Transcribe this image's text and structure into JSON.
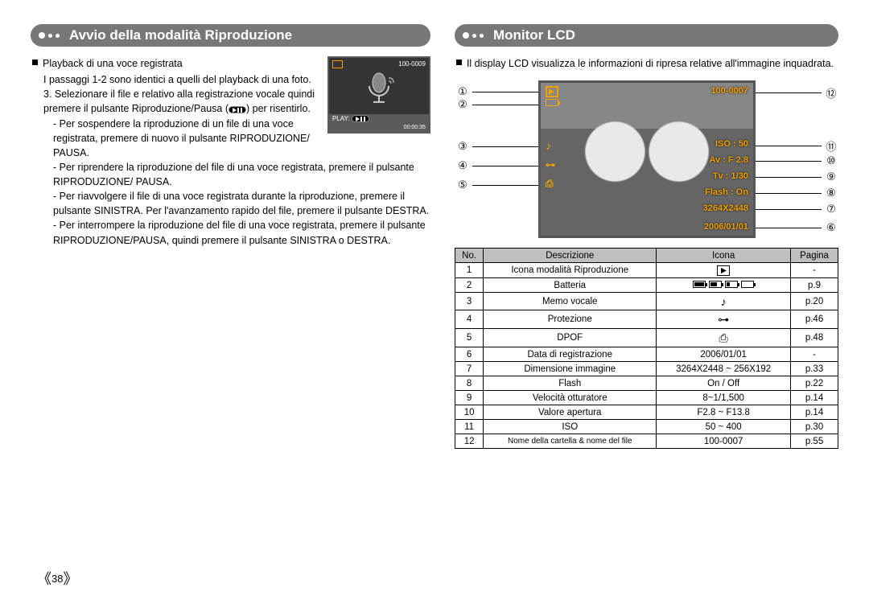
{
  "page_number": "38",
  "left": {
    "header": "Avvio della modalità Riproduzione",
    "bullet_title": "Playback di una voce registrata",
    "intro": "I passaggi 1-2 sono identici a quelli del playback di una foto.",
    "step3_a": "3. Selezionare il file e relativo alla registrazione vocale quindi premere il pulsante Riproduzione/Pausa (",
    "step3_b": ") per risentirlo.",
    "lines": [
      "- Per sospendere la riproduzione di un file di una voce registrata, premere di nuovo il pulsante RIPRODUZIONE/ PAUSA.",
      "- Per riprendere la riproduzione del file di una voce registrata, premere il pulsante RIPRODUZIONE/ PAUSA.",
      "- Per riavvolgere il file di una voce registrata durante la riproduzione, premere il pulsante SINISTRA. Per l'avanzamento rapido del file, premere il pulsante DESTRA.",
      "- Per interrompere la riproduzione del file di una voce registrata, premere il pulsante RIPRODUZIONE/PAUSA, quindi premere il pulsante SINISTRA o DESTRA."
    ],
    "lcd": {
      "file": "100-0009",
      "play_label": "PLAY:",
      "timer": "00:00:35"
    }
  },
  "right": {
    "header": "Monitor LCD",
    "intro": "Il display LCD visualizza le informazioni di ripresa relative all'immagine inquadrata.",
    "lcd_overlays": {
      "file": "100-0007",
      "iso": "ISO : 50",
      "av": "Av : F 2.8",
      "tv": "Tv : 1/30",
      "flash": "Flash : On",
      "size": "3264X2448",
      "date": "2006/01/01"
    },
    "callouts_left": {
      "1": 8,
      "2": 22,
      "3": 74,
      "4": 98,
      "5": 122
    },
    "callouts_right": {
      "12": 8,
      "11": 72,
      "10": 92,
      "9": 112,
      "8": 132,
      "7": 152,
      "6": 175
    },
    "table": {
      "headers": [
        "No.",
        "Descrizione",
        "Icona",
        "Pagina"
      ],
      "rows": [
        {
          "no": "1",
          "desc": "Icona modalità Riproduzione",
          "icon": "play",
          "page": "-"
        },
        {
          "no": "2",
          "desc": "Batteria",
          "icon": "batteries",
          "page": "p.9"
        },
        {
          "no": "3",
          "desc": "Memo vocale",
          "icon": "note",
          "page": "p.20"
        },
        {
          "no": "4",
          "desc": "Protezione",
          "icon": "key",
          "page": "p.46"
        },
        {
          "no": "5",
          "desc": "DPOF",
          "icon": "printer",
          "page": "p.48"
        },
        {
          "no": "6",
          "desc": "Data di registrazione",
          "icon_text": "2006/01/01",
          "page": "-"
        },
        {
          "no": "7",
          "desc": "Dimensione immagine",
          "icon_text": "3264X2448 ~ 256X192",
          "page": "p.33"
        },
        {
          "no": "8",
          "desc": "Flash",
          "icon_text": "On / Off",
          "page": "p.22"
        },
        {
          "no": "9",
          "desc": "Velocità otturatore",
          "icon_text": "8~1/1,500",
          "page": "p.14"
        },
        {
          "no": "10",
          "desc": "Valore apertura",
          "icon_text": "F2.8 ~ F13.8",
          "page": "p.14"
        },
        {
          "no": "11",
          "desc": "ISO",
          "icon_text": "50 ~ 400",
          "page": "p.30"
        },
        {
          "no": "12",
          "desc": "Nome della cartella & nome del file",
          "icon_text": "100-0007",
          "page": "p.55"
        }
      ]
    }
  },
  "style": {
    "header_bg": "#777777",
    "header_fg": "#ffffff",
    "overlay_color": "#f0a000",
    "table_header_bg": "#bfbfbf",
    "border_color": "#000000"
  }
}
